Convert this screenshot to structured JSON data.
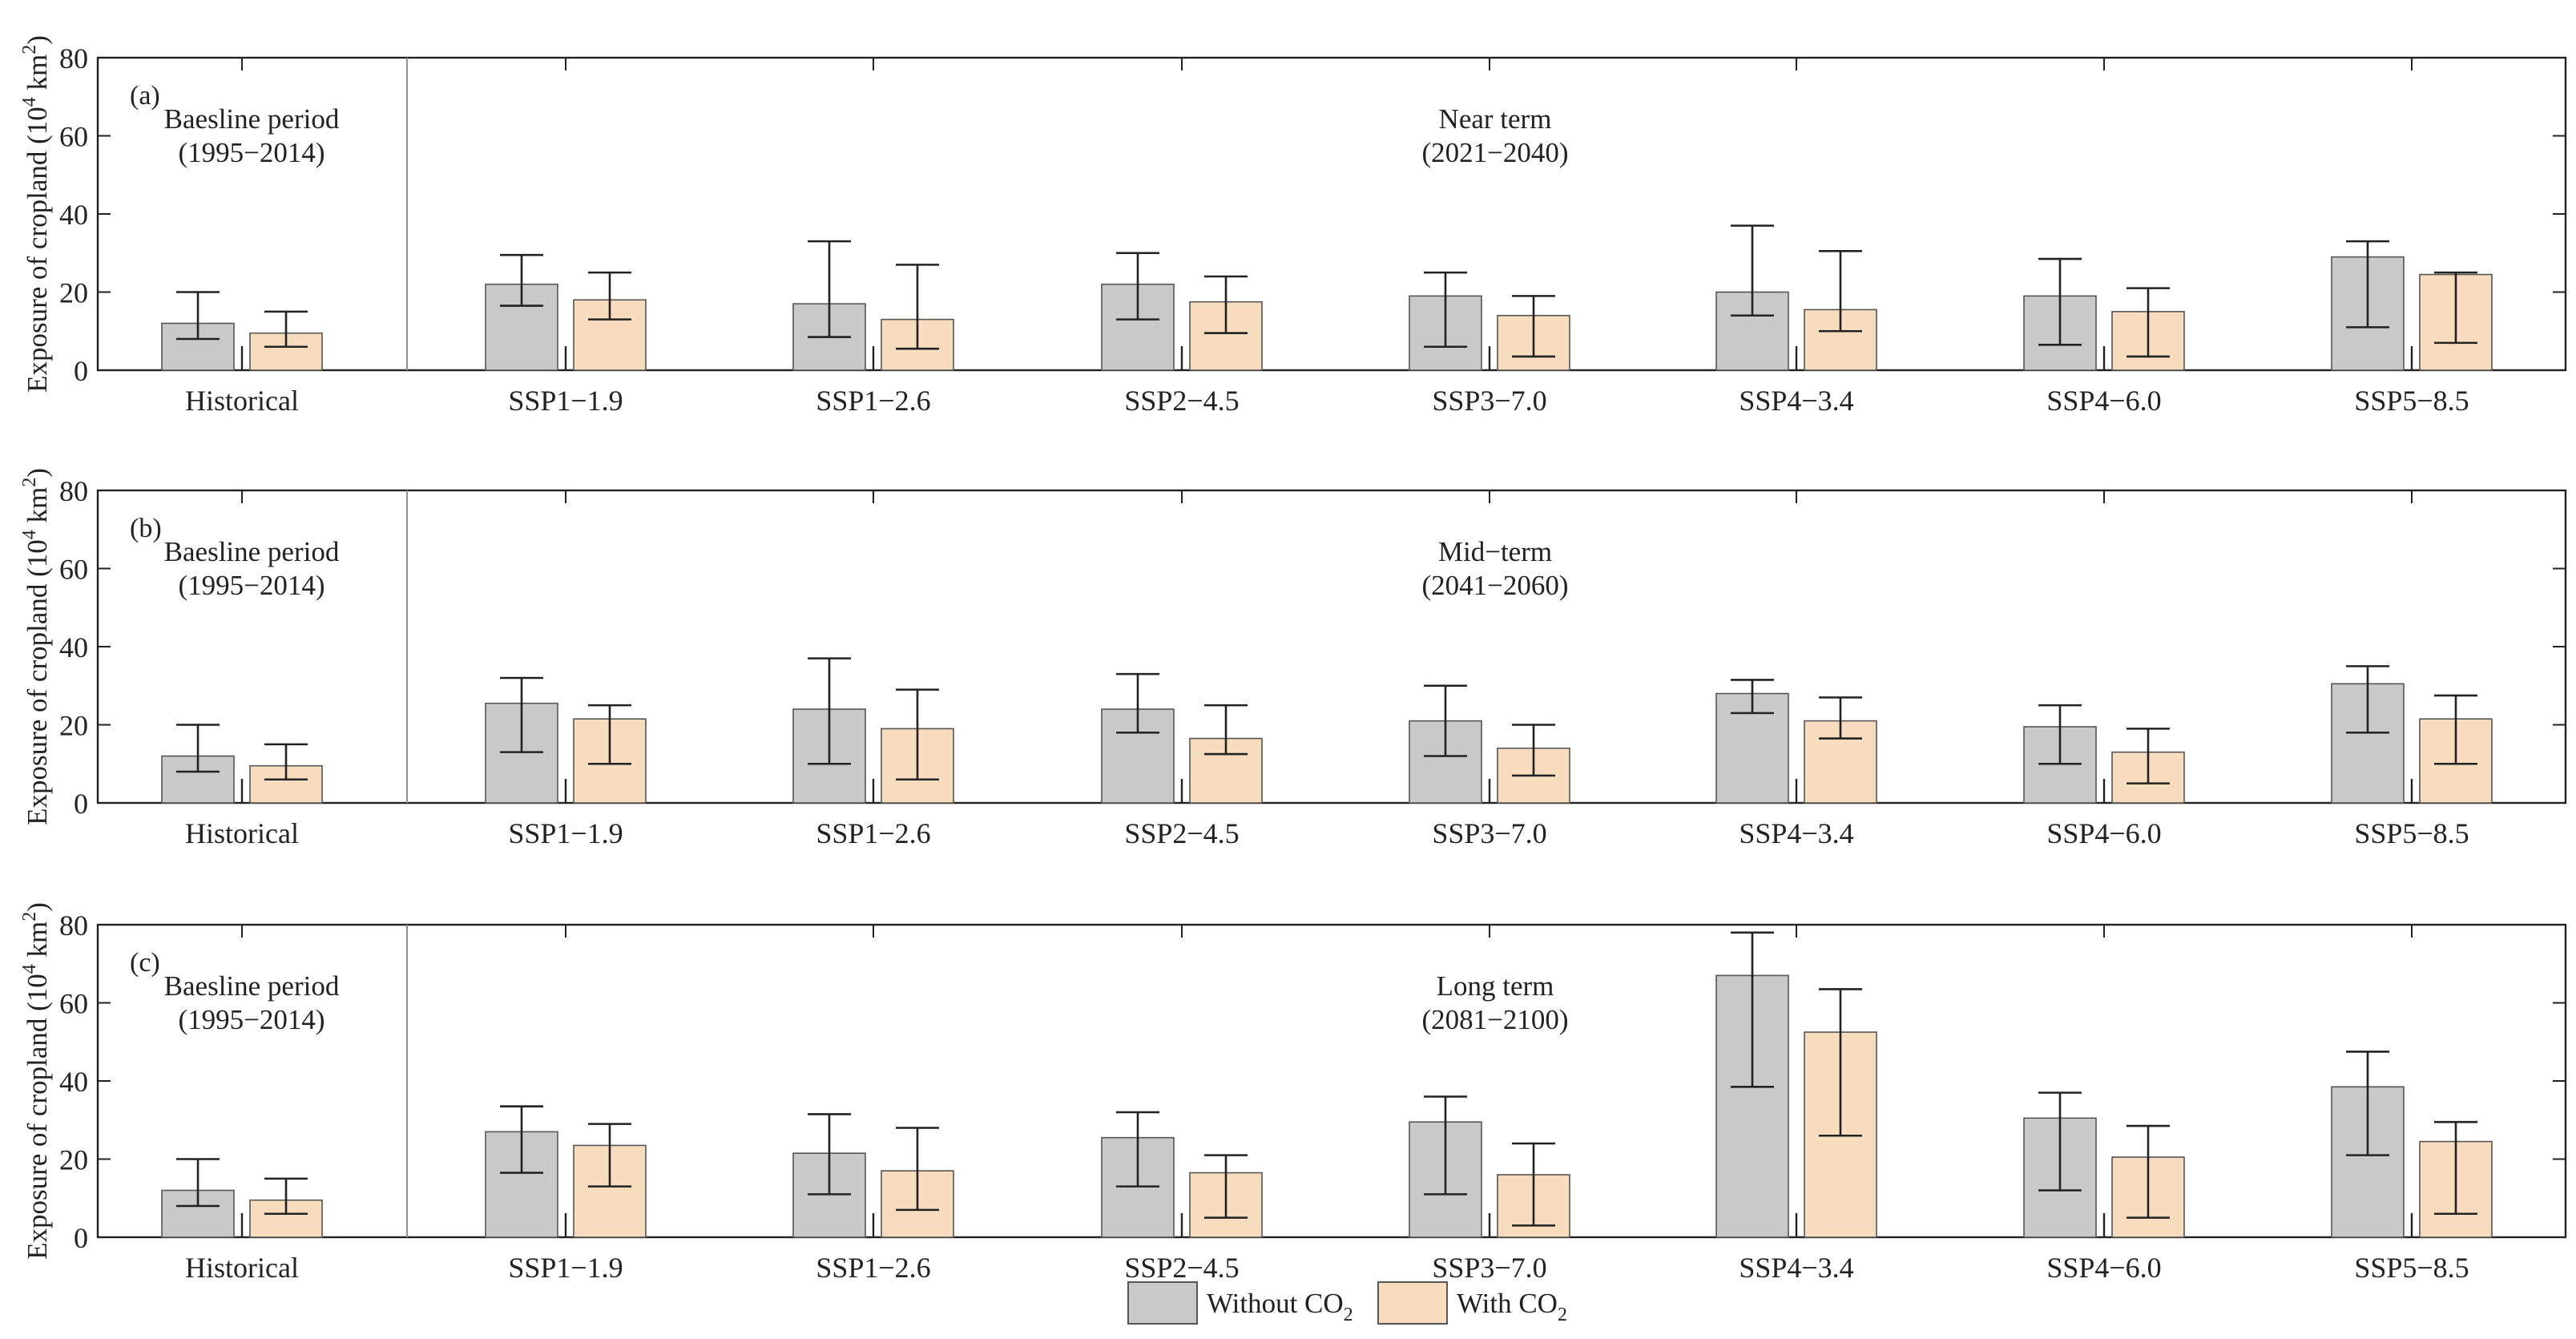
{
  "colors": {
    "without": "#c9c9c9",
    "with": "#f7dcbd",
    "bar_edge": "#555555",
    "axis": "#222222",
    "divider": "#8a8fa8"
  },
  "legend": {
    "without_label": "Without CO",
    "with_label": "With CO",
    "subscript": "2"
  },
  "chart_data": [
    {
      "type": "bar",
      "panel_label": "(a)",
      "baseline_title": "Baesline period",
      "baseline_years": "(1995−2014)",
      "period_title": "Near term",
      "period_years": "(2021−2040)",
      "ylabel_main": "Exposure of cropland (10",
      "ylabel_sup": "4",
      "ylabel_unit": " km",
      "ylabel_sup2": "2",
      "ylabel_end": ")",
      "ylim": [
        0,
        80
      ],
      "yticks": [
        0,
        20,
        40,
        60,
        80
      ],
      "categories": [
        "Historical",
        "SSP1−1.9",
        "SSP1−2.6",
        "SSP2−4.5",
        "SSP3−7.0",
        "SSP4−3.4",
        "SSP4−6.0",
        "SSP5−8.5"
      ],
      "series": [
        {
          "name": "Without CO2",
          "values": [
            12,
            22,
            17,
            22,
            19,
            20,
            19,
            29
          ],
          "err_low": [
            8,
            16.5,
            8.5,
            13,
            6,
            14,
            6.5,
            11
          ],
          "err_high": [
            20,
            29.5,
            33,
            30,
            25,
            37,
            28.5,
            33
          ]
        },
        {
          "name": "With CO2",
          "values": [
            9.5,
            18,
            13,
            17.5,
            14,
            15.5,
            15,
            24.5
          ],
          "err_low": [
            6,
            13,
            5.5,
            9.5,
            3.5,
            10,
            3.5,
            7
          ],
          "err_high": [
            15,
            25,
            27,
            24,
            19,
            30.5,
            21,
            25
          ]
        }
      ]
    },
    {
      "type": "bar",
      "panel_label": "(b)",
      "baseline_title": "Baesline period",
      "baseline_years": "(1995−2014)",
      "period_title": "Mid−term",
      "period_years": "(2041−2060)",
      "ylabel_main": "Exposure of cropland (10",
      "ylabel_sup": "4",
      "ylabel_unit": " km",
      "ylabel_sup2": "2",
      "ylabel_end": ")",
      "ylim": [
        0,
        80
      ],
      "yticks": [
        0,
        20,
        40,
        60,
        80
      ],
      "categories": [
        "Historical",
        "SSP1−1.9",
        "SSP1−2.6",
        "SSP2−4.5",
        "SSP3−7.0",
        "SSP4−3.4",
        "SSP4−6.0",
        "SSP5−8.5"
      ],
      "series": [
        {
          "name": "Without CO2",
          "values": [
            12,
            25.5,
            24,
            24,
            21,
            28,
            19.5,
            30.5
          ],
          "err_low": [
            8,
            13,
            10,
            18,
            12,
            23,
            10,
            18
          ],
          "err_high": [
            20,
            32,
            37,
            33,
            30,
            31.5,
            25,
            35
          ]
        },
        {
          "name": "With CO2",
          "values": [
            9.5,
            21.5,
            19,
            16.5,
            14,
            21,
            13,
            21.5
          ],
          "err_low": [
            6,
            10,
            6,
            12.5,
            7,
            16.5,
            5,
            10
          ],
          "err_high": [
            15,
            25,
            29,
            25,
            20,
            27,
            19,
            27.5
          ]
        }
      ]
    },
    {
      "type": "bar",
      "panel_label": "(c)",
      "baseline_title": "Baesline period",
      "baseline_years": "(1995−2014)",
      "period_title": "Long term",
      "period_years": "(2081−2100)",
      "ylabel_main": "Exposure of cropland (10",
      "ylabel_sup": "4",
      "ylabel_unit": " km",
      "ylabel_sup2": "2",
      "ylabel_end": ")",
      "ylim": [
        0,
        80
      ],
      "yticks": [
        0,
        20,
        40,
        60,
        80
      ],
      "categories": [
        "Historical",
        "SSP1−1.9",
        "SSP1−2.6",
        "SSP2−4.5",
        "SSP3−7.0",
        "SSP4−3.4",
        "SSP4−6.0",
        "SSP5−8.5"
      ],
      "series": [
        {
          "name": "Without CO2",
          "values": [
            12,
            27,
            21.5,
            25.5,
            29.5,
            67,
            30.5,
            38.5
          ],
          "err_low": [
            8,
            16.5,
            11,
            13,
            11,
            38.5,
            12,
            21
          ],
          "err_high": [
            20,
            33.5,
            31.5,
            32,
            36,
            78,
            37,
            47.5
          ]
        },
        {
          "name": "With CO2",
          "values": [
            9.5,
            23.5,
            17,
            16.5,
            16,
            52.5,
            20.5,
            24.5
          ],
          "err_low": [
            6,
            13,
            7,
            5,
            3,
            26,
            5,
            6
          ],
          "err_high": [
            15,
            29,
            28,
            21,
            24,
            63.5,
            28.5,
            29.5
          ]
        }
      ]
    }
  ]
}
